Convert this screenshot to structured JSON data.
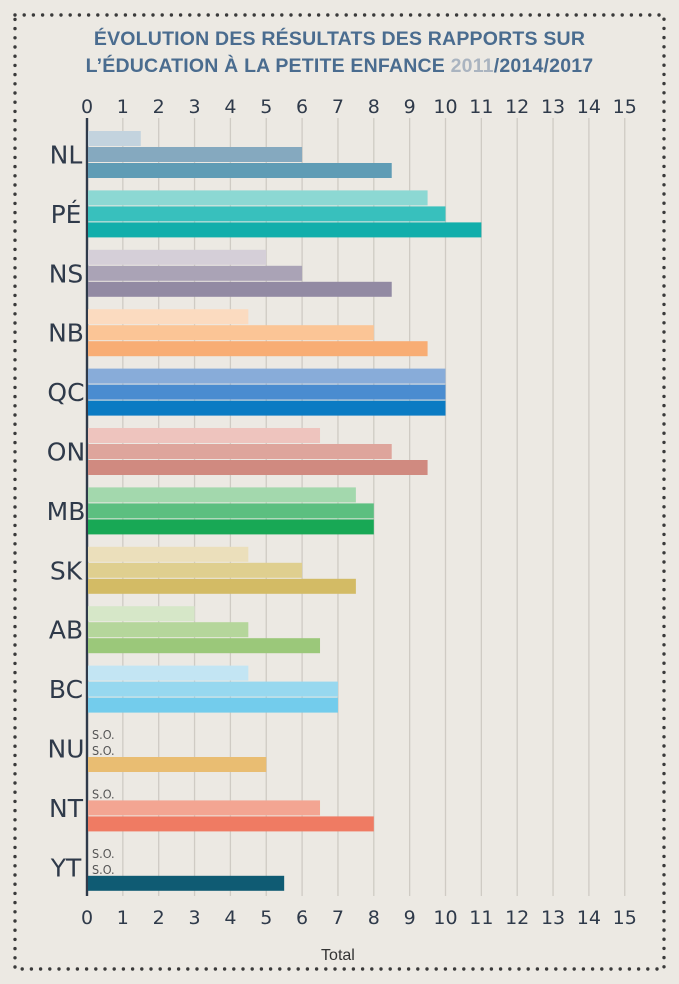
{
  "title": {
    "line1": "ÉVOLUTION DES RÉSULTATS DES RAPPORTS SUR",
    "line2_prefix": "L’ÉDUCATION À LA PETITE ENFANCE ",
    "year1": "2011",
    "sep1": "/",
    "year2": "2014",
    "sep2": "/",
    "year3": "2017"
  },
  "chart_data": {
    "type": "bar",
    "orientation": "horizontal",
    "title": "ÉVOLUTION DES RÉSULTATS DES RAPPORTS SUR L’ÉDUCATION À LA PETITE ENFANCE 2011/2014/2017",
    "xlabel": "Total",
    "xlim": [
      0,
      15
    ],
    "xticks": [
      0,
      1,
      2,
      3,
      4,
      5,
      6,
      7,
      8,
      9,
      10,
      11,
      12,
      13,
      14,
      15
    ],
    "grid": true,
    "missing_label": "S.O.",
    "categories": [
      "NL",
      "PÉ",
      "NS",
      "NB",
      "QC",
      "ON",
      "MB",
      "SK",
      "AB",
      "BC",
      "NU",
      "NT",
      "YT"
    ],
    "series": [
      {
        "name": "2011",
        "values": [
          1.5,
          9.5,
          5,
          4.5,
          10,
          6.5,
          7.5,
          4.5,
          3,
          4.5,
          null,
          null,
          null
        ]
      },
      {
        "name": "2014",
        "values": [
          6,
          10,
          6,
          8,
          10,
          8.5,
          8,
          6,
          4.5,
          7,
          null,
          6.5,
          null
        ]
      },
      {
        "name": "2017",
        "values": [
          8.5,
          11,
          8.5,
          9.5,
          10,
          9.5,
          8,
          7.5,
          6.5,
          7,
          5,
          8,
          5.5
        ]
      }
    ],
    "colors": [
      [
        "#c3d3de",
        "#85a9bf",
        "#5f9cb5"
      ],
      [
        "#8cd8d3",
        "#38c0bd",
        "#11aeab"
      ],
      [
        "#d5cfd8",
        "#aaa3b6",
        "#928aa3"
      ],
      [
        "#fbdbc0",
        "#fbc596",
        "#f8ad74"
      ],
      [
        "#88acd9",
        "#4a8cd0",
        "#0b7bc3"
      ],
      [
        "#eec4be",
        "#dea59c",
        "#d08a80"
      ],
      [
        "#a3d8ad",
        "#5cbf80",
        "#18a855"
      ],
      [
        "#ebdfbb",
        "#dfcf8f",
        "#d3bb65"
      ],
      [
        "#d6e7c8",
        "#b5d69b",
        "#9bc87a"
      ],
      [
        "#c3e5f3",
        "#97d8ef",
        "#73ccec"
      ],
      [
        "#f5dcb3",
        "#efcc8a",
        "#e9bd72"
      ],
      [
        "#f8cfc1",
        "#f3a592",
        "#ef7b63"
      ],
      [
        "#4c7f90",
        "#2c6c80",
        "#0f5b73"
      ]
    ]
  }
}
